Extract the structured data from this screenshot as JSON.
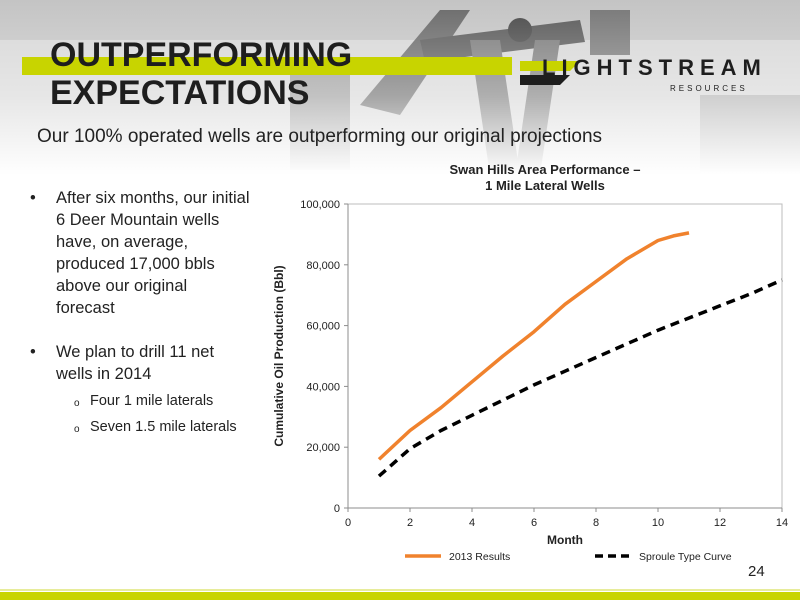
{
  "slide": {
    "title_line1": "OUTPERFORMING",
    "title_line2": "EXPECTATIONS",
    "subtitle": "Our 100% operated wells are outperforming our original projections",
    "page_number": "24",
    "accent_color": "#c8d400"
  },
  "logo": {
    "name": "LIGHTSTREAM",
    "tagline": "RESOURCES"
  },
  "bullets": [
    {
      "text": "After six months, our initial 6 Deer Mountain wells have, on average, produced 17,000 bbls above our original forecast",
      "subitems": []
    },
    {
      "text": "We plan to drill 11 net wells in 2014",
      "subitems": [
        "Four 1 mile laterals",
        "Seven 1.5 mile laterals"
      ]
    }
  ],
  "chart_data": {
    "type": "line",
    "title": "Swan Hills Area Performance –",
    "subtitle": "1 Mile Lateral Wells",
    "xlabel": "Month",
    "ylabel": "Cumulative Oil Production (Bbl)",
    "xlim": [
      0,
      14
    ],
    "ylim": [
      0,
      100000
    ],
    "xticks": [
      "0",
      "2",
      "4",
      "6",
      "8",
      "10",
      "12",
      "14"
    ],
    "yticks": [
      "0",
      "20,000",
      "40,000",
      "60,000",
      "80,000",
      "100,000"
    ],
    "grid": false,
    "legend_position": "bottom",
    "series": [
      {
        "name": "2013 Results",
        "color": "#f0822d",
        "dash": "solid",
        "x": [
          1,
          2,
          3,
          4,
          5,
          6,
          7,
          8,
          9,
          10,
          10.5,
          11
        ],
        "y": [
          16000,
          25500,
          33000,
          41500,
          50000,
          58000,
          67000,
          74500,
          82000,
          88000,
          89500,
          90500
        ]
      },
      {
        "name": "Sproule Type Curve",
        "color": "#000000",
        "dash": "dashed",
        "x": [
          1,
          2,
          3,
          4,
          5,
          6,
          7,
          8,
          9,
          10,
          11,
          12,
          13,
          14
        ],
        "y": [
          10500,
          19500,
          25500,
          30500,
          35500,
          40500,
          45000,
          49500,
          54000,
          58500,
          62500,
          66500,
          70500,
          75000
        ]
      }
    ]
  }
}
